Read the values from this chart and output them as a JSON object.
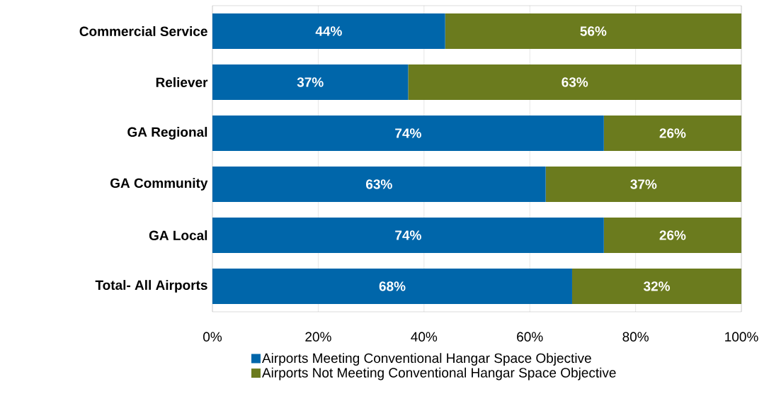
{
  "chart_data": {
    "type": "bar",
    "orientation": "horizontal",
    "stacked": true,
    "categories": [
      "Commercial Service",
      "Reliever",
      "GA Regional",
      "GA Community",
      "GA Local",
      "Total- All Airports"
    ],
    "series": [
      {
        "name": "Airports Meeting Conventional Hangar Space Objective",
        "color": "#0066aa",
        "values": [
          44,
          37,
          74,
          63,
          74,
          68
        ],
        "value_labels": [
          "44%",
          "37%",
          "74%",
          "63%",
          "74%",
          "68%"
        ]
      },
      {
        "name": "Airports Not Meeting Conventional Hangar Space Objective",
        "color": "#6b7b1e",
        "values": [
          56,
          63,
          26,
          37,
          26,
          32
        ],
        "value_labels": [
          "56%",
          "63%",
          "26%",
          "37%",
          "26%",
          "32%"
        ]
      }
    ],
    "xlim": [
      0,
      100
    ],
    "xticks": [
      {
        "value": 0,
        "label": "0%"
      },
      {
        "value": 20,
        "label": "20%"
      },
      {
        "value": 40,
        "label": "40%"
      },
      {
        "value": 60,
        "label": "60%"
      },
      {
        "value": 80,
        "label": "80%"
      },
      {
        "value": 100,
        "label": "100%"
      }
    ],
    "grid": "x",
    "legend": "bottom"
  }
}
